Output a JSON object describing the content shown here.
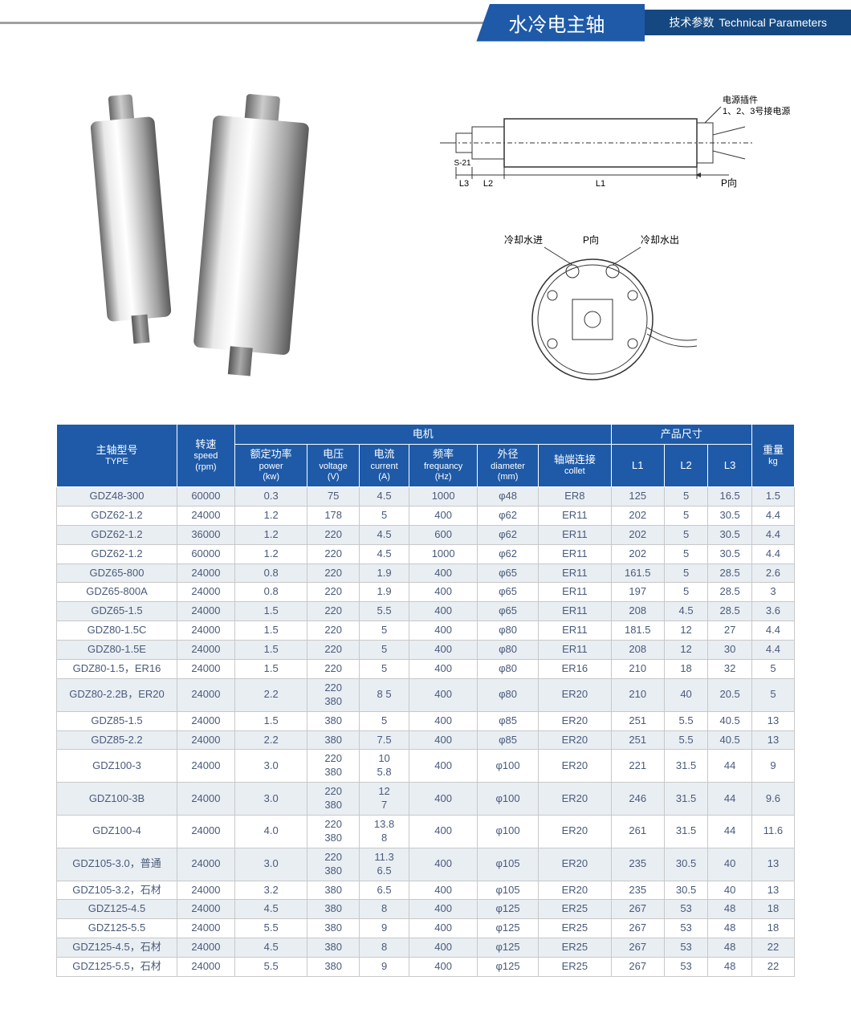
{
  "header": {
    "title_cn": "水冷电主轴",
    "sub_cn": "技术参数",
    "sub_en": "Technical Parameters"
  },
  "diagram": {
    "labels": {
      "power_plug": "电源插件\n1、2、3号接电源",
      "p_dir": "P向",
      "l1": "L1",
      "l2": "L2",
      "l3": "L3",
      "s21": "S-21",
      "water_in": "冷却水进",
      "p_dir2": "P向",
      "water_out": "冷却水出"
    }
  },
  "table": {
    "header": {
      "type": {
        "cn": "主轴型号",
        "en": "TYPE"
      },
      "speed": {
        "cn": "转速",
        "en": "speed",
        "unit": "(rpm)"
      },
      "motor": "电机",
      "power": {
        "cn": "额定功率",
        "en": "power",
        "unit": "(kw)"
      },
      "voltage": {
        "cn": "电压",
        "en": "voltage",
        "unit": "(V)"
      },
      "current": {
        "cn": "电流",
        "en": "current",
        "unit": "(A)"
      },
      "freq": {
        "cn": "频率",
        "en": "frequancy",
        "unit": "(Hz)"
      },
      "diameter": {
        "cn": "外径",
        "en": "diameter",
        "unit": "(mm)"
      },
      "collet": {
        "cn": "轴端连接",
        "en": "collet"
      },
      "dims": "产品尺寸",
      "l1": "L1",
      "l2": "L2",
      "l3": "L3",
      "weight": {
        "cn": "重量",
        "en": "kg"
      }
    },
    "rows": [
      [
        "GDZ48-300",
        "60000",
        "0.3",
        "75",
        "4.5",
        "1000",
        "φ48",
        "ER8",
        "125",
        "5",
        "16.5",
        "1.5"
      ],
      [
        "GDZ62-1.2",
        "24000",
        "1.2",
        "178",
        "5",
        "400",
        "φ62",
        "ER11",
        "202",
        "5",
        "30.5",
        "4.4"
      ],
      [
        "GDZ62-1.2",
        "36000",
        "1.2",
        "220",
        "4.5",
        "600",
        "φ62",
        "ER11",
        "202",
        "5",
        "30.5",
        "4.4"
      ],
      [
        "GDZ62-1.2",
        "60000",
        "1.2",
        "220",
        "4.5",
        "1000",
        "φ62",
        "ER11",
        "202",
        "5",
        "30.5",
        "4.4"
      ],
      [
        "GDZ65-800",
        "24000",
        "0.8",
        "220",
        "1.9",
        "400",
        "φ65",
        "ER11",
        "161.5",
        "5",
        "28.5",
        "2.6"
      ],
      [
        "GDZ65-800A",
        "24000",
        "0.8",
        "220",
        "1.9",
        "400",
        "φ65",
        "ER11",
        "197",
        "5",
        "28.5",
        "3"
      ],
      [
        "GDZ65-1.5",
        "24000",
        "1.5",
        "220",
        "5.5",
        "400",
        "φ65",
        "ER11",
        "208",
        "4.5",
        "28.5",
        "3.6"
      ],
      [
        "GDZ80-1.5C",
        "24000",
        "1.5",
        "220",
        "5",
        "400",
        "φ80",
        "ER11",
        "181.5",
        "12",
        "27",
        "4.4"
      ],
      [
        "GDZ80-1.5E",
        "24000",
        "1.5",
        "220",
        "5",
        "400",
        "φ80",
        "ER11",
        "208",
        "12",
        "30",
        "4.4"
      ],
      [
        "GDZ80-1.5，ER16",
        "24000",
        "1.5",
        "220",
        "5",
        "400",
        "φ80",
        "ER16",
        "210",
        "18",
        "32",
        "5"
      ],
      [
        "GDZ80-2.2B，ER20",
        "24000",
        "2.2",
        "220\n380",
        "8 5",
        "400",
        "φ80",
        "ER20",
        "210",
        "40",
        "20.5",
        "5"
      ],
      [
        "GDZ85-1.5",
        "24000",
        "1.5",
        "380",
        "5",
        "400",
        "φ85",
        "ER20",
        "251",
        "5.5",
        "40.5",
        "13"
      ],
      [
        "GDZ85-2.2",
        "24000",
        "2.2",
        "380",
        "7.5",
        "400",
        "φ85",
        "ER20",
        "251",
        "5.5",
        "40.5",
        "13"
      ],
      [
        "GDZ100-3",
        "24000",
        "3.0",
        "220\n380",
        "10\n5.8",
        "400",
        "φ100",
        "ER20",
        "221",
        "31.5",
        "44",
        "9"
      ],
      [
        "GDZ100-3B",
        "24000",
        "3.0",
        "220\n380",
        "12\n7",
        "400",
        "φ100",
        "ER20",
        "246",
        "31.5",
        "44",
        "9.6"
      ],
      [
        "GDZ100-4",
        "24000",
        "4.0",
        "220\n380",
        "13.8\n8",
        "400",
        "φ100",
        "ER20",
        "261",
        "31.5",
        "44",
        "11.6"
      ],
      [
        "GDZ105-3.0，普通",
        "24000",
        "3.0",
        "220\n380",
        "11.3\n6.5",
        "400",
        "φ105",
        "ER20",
        "235",
        "30.5",
        "40",
        "13"
      ],
      [
        "GDZ105-3.2，石材",
        "24000",
        "3.2",
        "380",
        "6.5",
        "400",
        "φ105",
        "ER20",
        "235",
        "30.5",
        "40",
        "13"
      ],
      [
        "GDZ125-4.5",
        "24000",
        "4.5",
        "380",
        "8",
        "400",
        "φ125",
        "ER25",
        "267",
        "53",
        "48",
        "18"
      ],
      [
        "GDZ125-5.5",
        "24000",
        "5.5",
        "380",
        "9",
        "400",
        "φ125",
        "ER25",
        "267",
        "53",
        "48",
        "18"
      ],
      [
        "GDZ125-4.5，石材",
        "24000",
        "4.5",
        "380",
        "8",
        "400",
        "φ125",
        "ER25",
        "267",
        "53",
        "48",
        "22"
      ],
      [
        "GDZ125-5.5，石材",
        "24000",
        "5.5",
        "380",
        "9",
        "400",
        "φ125",
        "ER25",
        "267",
        "53",
        "48",
        "22"
      ]
    ]
  },
  "colors": {
    "header_blue": "#1e5aa8",
    "header_dark": "#154880",
    "row_alt": "#e9eef3",
    "cell_text": "#4a5a7a",
    "border": "#c8c8c8"
  }
}
